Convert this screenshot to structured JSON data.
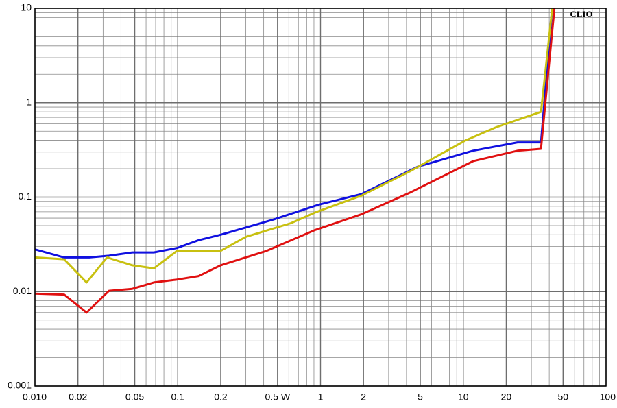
{
  "chart_data": {
    "type": "line",
    "annotation": "CLIO",
    "xscale": "log",
    "yscale": "log",
    "grid": true,
    "xlim": [
      0.01,
      100
    ],
    "ylim": [
      0.001,
      10
    ],
    "xticks": [
      {
        "value": 0.01,
        "label": "0.010"
      },
      0.02,
      0.05,
      0.1,
      0.2,
      {
        "value": 0.5,
        "label": "0.5 W"
      },
      1,
      2,
      5,
      10,
      20,
      50,
      100
    ],
    "yticks": [
      0.001,
      0.01,
      0.1,
      1,
      10
    ],
    "series": [
      {
        "color": "#1010e0",
        "x": [
          0.01,
          0.016,
          0.024,
          0.033,
          0.048,
          0.068,
          0.099,
          0.14,
          0.2,
          0.47,
          0.97,
          1.94,
          4.8,
          11.7,
          24,
          35,
          42
        ],
        "values": [
          0.028,
          0.023,
          0.023,
          0.024,
          0.026,
          0.026,
          0.029,
          0.035,
          0.04,
          0.058,
          0.083,
          0.108,
          0.21,
          0.31,
          0.38,
          0.38,
          10
        ]
      },
      {
        "color": "#c8c010",
        "x": [
          0.01,
          0.016,
          0.023,
          0.032,
          0.048,
          0.068,
          0.099,
          0.14,
          0.2,
          0.3,
          0.62,
          0.92,
          1.94,
          4.3,
          10.4,
          17,
          35,
          42
        ],
        "values": [
          0.023,
          0.022,
          0.0125,
          0.023,
          0.019,
          0.0176,
          0.027,
          0.027,
          0.027,
          0.038,
          0.053,
          0.069,
          0.104,
          0.19,
          0.4,
          0.55,
          0.8,
          10
        ]
      },
      {
        "color": "#e01010",
        "x": [
          0.01,
          0.016,
          0.023,
          0.033,
          0.048,
          0.068,
          0.099,
          0.14,
          0.2,
          0.42,
          0.92,
          1.94,
          4.3,
          11.7,
          24,
          35,
          43.5
        ],
        "values": [
          0.0095,
          0.0093,
          0.006,
          0.0102,
          0.0107,
          0.0125,
          0.0134,
          0.0146,
          0.019,
          0.027,
          0.045,
          0.066,
          0.113,
          0.24,
          0.31,
          0.325,
          10
        ]
      }
    ]
  }
}
